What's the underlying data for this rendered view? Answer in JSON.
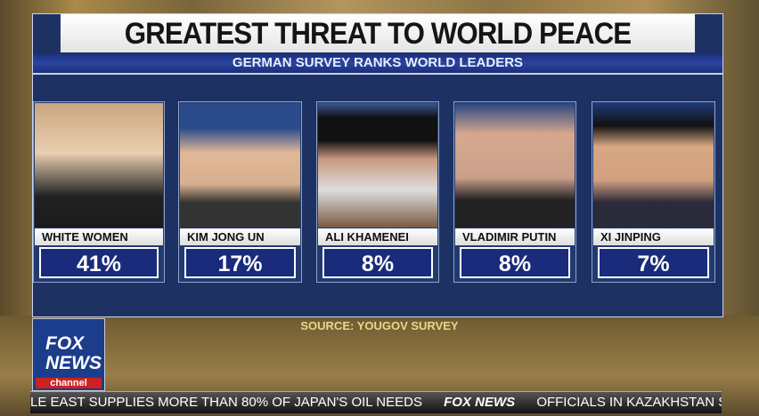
{
  "title": "GREATEST THREAT TO WORLD PEACE",
  "subtitle": "GERMAN SURVEY RANKS WORLD LEADERS",
  "chart_data": {
    "type": "table",
    "categories": [
      "WHITE WOMEN",
      "KIM JONG UN",
      "ALI KHAMENEI",
      "VLADIMIR PUTIN",
      "XI JINPING"
    ],
    "values": [
      41,
      17,
      8,
      8,
      7
    ],
    "labels": [
      "41%",
      "17%",
      "8%",
      "8%",
      "7%"
    ]
  },
  "source": "SOURCE: YOUGOV SURVEY",
  "logo": {
    "line1": "FOX",
    "line2": "NEWS",
    "line3": "channel"
  },
  "ticker": {
    "left": "LE EAST SUPPLIES MORE THAN 80% OF JAPAN'S OIL NEEDS",
    "brand": "FOX NEWS",
    "right": "OFFICIALS IN KAZAKHSTAN SA"
  },
  "colors": {
    "panel": "#1d3263",
    "accent": "#1a2b7c"
  }
}
